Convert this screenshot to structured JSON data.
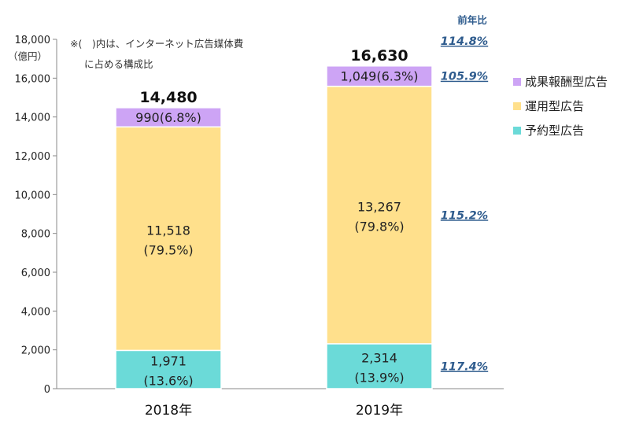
{
  "chart_data": {
    "type": "bar",
    "stacked": true,
    "categories": [
      "2018年",
      "2019年"
    ],
    "series": [
      {
        "name": "予約型広告",
        "values": [
          1971,
          2314
        ],
        "labels": [
          "1,971",
          "2,314"
        ],
        "shares": [
          "(13.6%)",
          "(13.9%)"
        ],
        "color": "#6BDAD8",
        "yoy": "117.4%"
      },
      {
        "name": "運用型広告",
        "values": [
          11518,
          13267
        ],
        "labels": [
          "11,518",
          "13,267"
        ],
        "shares": [
          "(79.5%)",
          "(79.8%)"
        ],
        "color": "#FFE08C",
        "yoy": "115.2%"
      },
      {
        "name": "成果報酬型広告",
        "values": [
          990,
          1049
        ],
        "labels": [
          "990(6.8%)",
          "1,049(6.3%)"
        ],
        "shares": [
          "",
          ""
        ],
        "color": "#CDA4F5",
        "yoy": "105.9%"
      }
    ],
    "totals": [
      "14,480",
      "16,630"
    ],
    "total_yoy": "114.8%",
    "yoy_header": "前年比",
    "ylim": [
      0,
      18000
    ],
    "yticks": [
      0,
      2000,
      4000,
      6000,
      8000,
      10000,
      12000,
      14000,
      16000,
      18000
    ],
    "ytick_labels": [
      "0",
      "2,000",
      "4,000",
      "6,000",
      "8,000",
      "10,000",
      "12,000",
      "14,000",
      "16,000",
      "18,000"
    ],
    "ylabel": "（億円）",
    "note_lines": [
      "※(　)内は、インターネット広告媒体費",
      "に占める構成比"
    ],
    "legend": {
      "position": "right",
      "entries": [
        "成果報酬型広告",
        "運用型広告",
        "予約型広告"
      ],
      "colors": [
        "#CDA4F5",
        "#FFE08C",
        "#6BDAD8"
      ]
    },
    "grid": false
  }
}
